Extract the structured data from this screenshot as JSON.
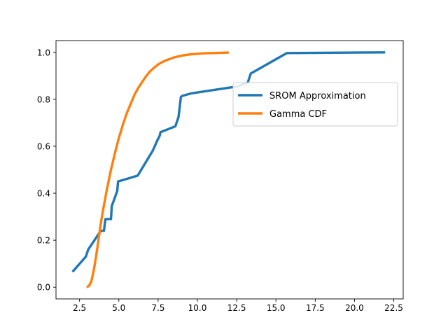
{
  "chart_data": {
    "type": "line",
    "title": "",
    "xlabel": "",
    "ylabel": "",
    "xlim": [
      1.0,
      23.1
    ],
    "ylim": [
      -0.05,
      1.05
    ],
    "xticks": [
      2.5,
      5.0,
      7.5,
      10.0,
      12.5,
      15.0,
      17.5,
      20.0,
      22.5
    ],
    "xtick_labels": [
      "2.5",
      "5.0",
      "7.5",
      "10.0",
      "12.5",
      "15.0",
      "17.5",
      "20.0",
      "22.5"
    ],
    "yticks": [
      0.0,
      0.2,
      0.4,
      0.6,
      0.8,
      1.0
    ],
    "ytick_labels": [
      "0.0",
      "0.2",
      "0.4",
      "0.6",
      "0.8",
      "1.0"
    ],
    "grid": false,
    "legend": "upper-right",
    "series": [
      {
        "name": "SROM Approximation",
        "color": "#1f77b4",
        "x": [
          2.05,
          2.9,
          3.05,
          3.85,
          4.05,
          4.15,
          4.5,
          4.55,
          4.9,
          4.95,
          6.2,
          7.15,
          7.45,
          7.6,
          7.65,
          8.6,
          8.8,
          8.95,
          9.05,
          9.6,
          12.55,
          13.2,
          13.4,
          15.7,
          21.95
        ],
        "y": [
          0.065,
          0.13,
          0.16,
          0.24,
          0.24,
          0.29,
          0.29,
          0.345,
          0.41,
          0.45,
          0.475,
          0.58,
          0.625,
          0.645,
          0.66,
          0.685,
          0.725,
          0.81,
          0.815,
          0.825,
          0.855,
          0.87,
          0.91,
          0.997,
          1.0
        ]
      },
      {
        "name": "Gamma CDF",
        "color": "#ff7f0e",
        "x": [
          2.95,
          3.1,
          3.25,
          3.4,
          3.55,
          3.7,
          3.85,
          4.0,
          4.25,
          4.5,
          4.75,
          5.0,
          5.25,
          5.5,
          5.75,
          6.0,
          6.25,
          6.5,
          6.75,
          7.0,
          7.25,
          7.5,
          7.75,
          8.0,
          8.25,
          8.5,
          9.0,
          9.5,
          10.0,
          10.5,
          11.0,
          11.5,
          12.0
        ],
        "y": [
          0.0,
          0.005,
          0.025,
          0.07,
          0.13,
          0.2,
          0.27,
          0.33,
          0.42,
          0.5,
          0.57,
          0.635,
          0.69,
          0.74,
          0.78,
          0.82,
          0.85,
          0.875,
          0.9,
          0.92,
          0.935,
          0.948,
          0.958,
          0.966,
          0.972,
          0.978,
          0.986,
          0.991,
          0.994,
          0.996,
          0.997,
          0.998,
          0.999
        ]
      }
    ]
  }
}
